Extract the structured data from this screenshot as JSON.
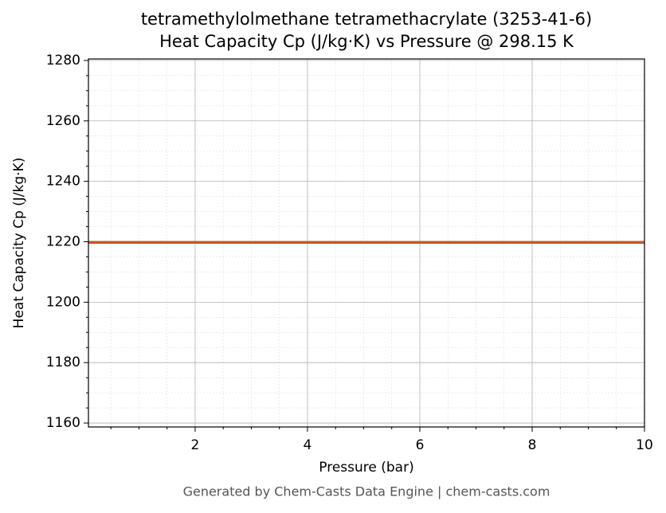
{
  "chart_data": {
    "type": "line",
    "title": "tetramethylolmethane tetramethacrylate (3253-41-6)",
    "subtitle": "Heat Capacity Cp (J/kg·K) vs Pressure @ 298.15 K",
    "x_label": "Pressure (bar)",
    "y_label": "Heat Capacity Cp (J/kg·K)",
    "footer": "Generated by Chem-Casts Data Engine | chem-casts.com",
    "x": [
      0.1,
      10
    ],
    "series": [
      {
        "name": "Cp",
        "color": "#c8562a",
        "values": [
          1219.8,
          1219.8
        ]
      }
    ],
    "xlim": [
      0.1,
      10
    ],
    "ylim": [
      1158.7,
      1280.5
    ],
    "xticks": [
      2,
      4,
      6,
      8,
      10
    ],
    "yticks": [
      1160,
      1180,
      1200,
      1220,
      1240,
      1260,
      1280
    ],
    "xminorticks": [
      0.5,
      1,
      1.5,
      2.5,
      3,
      3.5,
      4.5,
      5,
      5.5,
      6.5,
      7,
      7.5,
      8.5,
      9,
      9.5
    ],
    "yminorticks": [
      1165,
      1170,
      1175,
      1185,
      1190,
      1195,
      1205,
      1210,
      1215,
      1225,
      1230,
      1235,
      1245,
      1250,
      1255,
      1265,
      1270,
      1275
    ],
    "grid": true
  }
}
